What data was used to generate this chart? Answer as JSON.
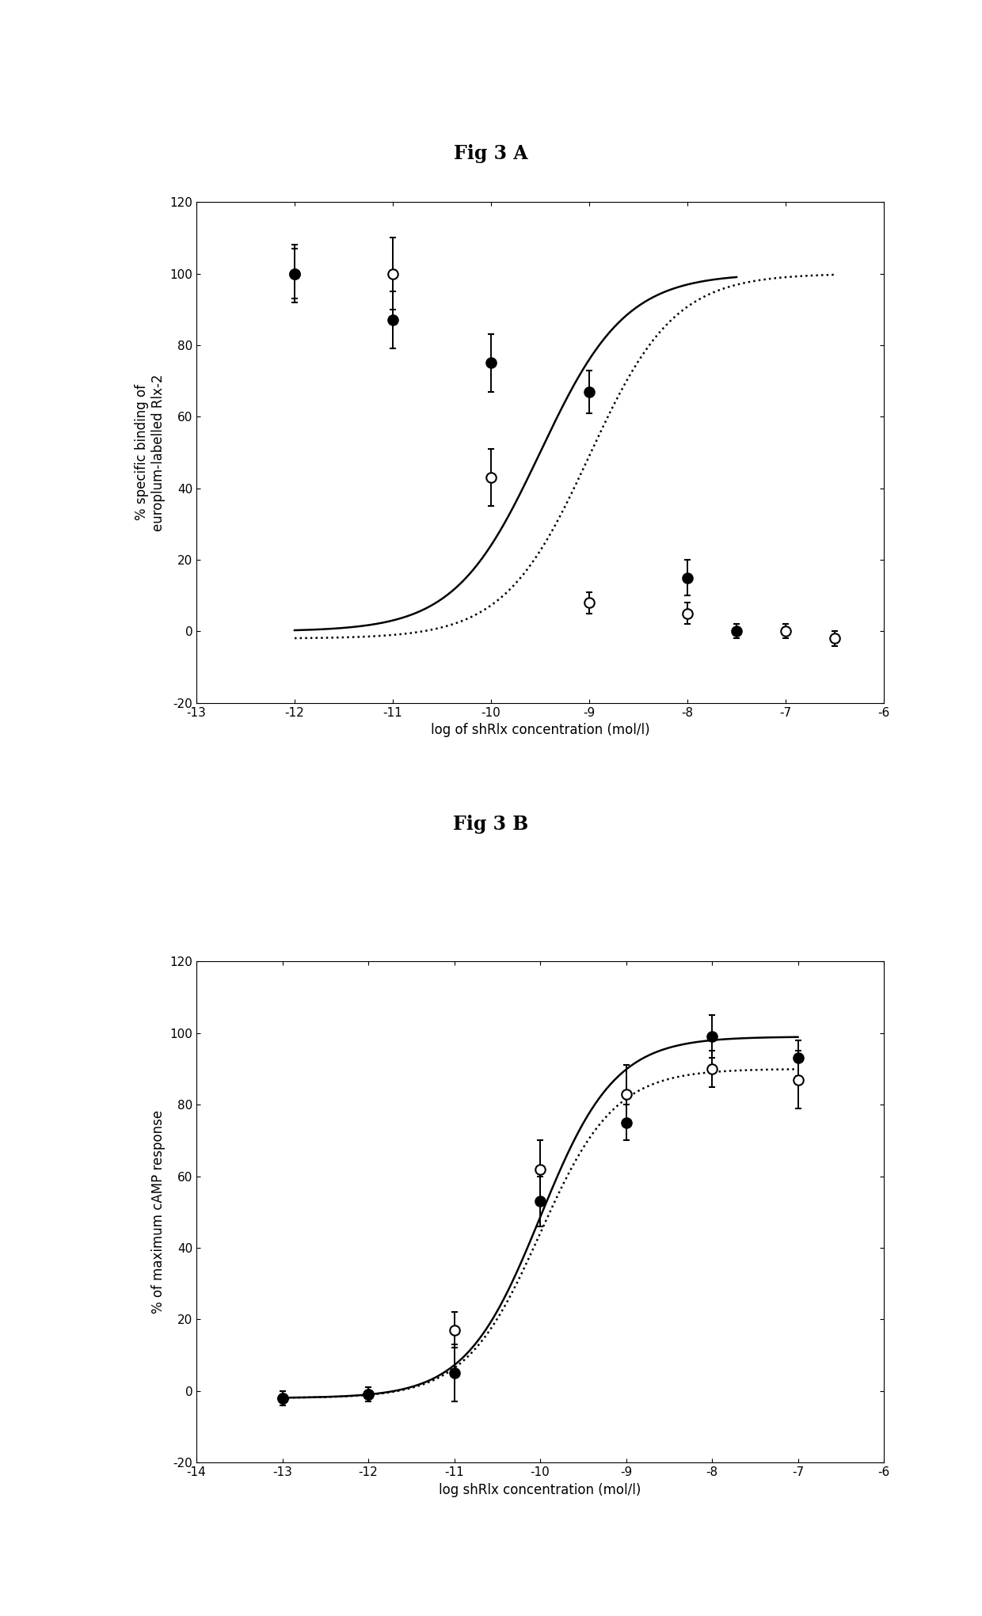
{
  "fig_title_A": "Fig 3 A",
  "fig_title_B": "Fig 3 B",
  "panelA": {
    "open_x": [
      -12,
      -11,
      -10,
      -9,
      -8,
      -7,
      -6.5
    ],
    "open_y": [
      100,
      100,
      43,
      8,
      5,
      0,
      -2
    ],
    "open_yerr": [
      8,
      10,
      8,
      3,
      3,
      2,
      2
    ],
    "filled_x": [
      -12,
      -11,
      -10,
      -9,
      -8,
      -7.5
    ],
    "filled_y": [
      100,
      87,
      75,
      67,
      15,
      0
    ],
    "filled_yerr": [
      7,
      8,
      8,
      6,
      5,
      2
    ],
    "xlabel": "log of shRlx concentration (mol/l)",
    "ylabel": "% specific binding of\neuroplum-labelled Rlx-2",
    "xlim": [
      -13,
      -6
    ],
    "ylim": [
      -20,
      120
    ],
    "xticks": [
      -13,
      -12,
      -11,
      -10,
      -9,
      -8,
      -7,
      -6
    ],
    "yticks": [
      -20,
      0,
      20,
      40,
      60,
      80,
      100,
      120
    ]
  },
  "panelB": {
    "open_x": [
      -13,
      -12,
      -11,
      -10,
      -9,
      -8,
      -7
    ],
    "open_y": [
      -2,
      -1,
      17,
      62,
      83,
      90,
      87
    ],
    "open_yerr": [
      2,
      2,
      5,
      8,
      8,
      5,
      8
    ],
    "filled_x": [
      -13,
      -12,
      -11,
      -10,
      -9,
      -8,
      -7
    ],
    "filled_y": [
      -2,
      -1,
      5,
      53,
      75,
      99,
      93
    ],
    "filled_yerr": [
      2,
      2,
      8,
      7,
      5,
      6,
      5
    ],
    "xlabel": "log shRlx concentration (mol/l)",
    "ylabel": "% of maximum cAMP response",
    "xlim": [
      -14,
      -6
    ],
    "ylim": [
      -20,
      120
    ],
    "xticks": [
      -14,
      -13,
      -12,
      -11,
      -10,
      -9,
      -8,
      -7,
      -6
    ],
    "yticks": [
      -20,
      0,
      20,
      40,
      60,
      80,
      100,
      120
    ]
  },
  "open_color": "#000000",
  "filled_color": "#000000",
  "marker_size": 9,
  "line_width": 1.8,
  "elinewidth": 1.4,
  "capsize": 3,
  "fontsize_title": 17,
  "fontsize_label": 12,
  "fontsize_tick": 11,
  "background_color": "#ffffff"
}
